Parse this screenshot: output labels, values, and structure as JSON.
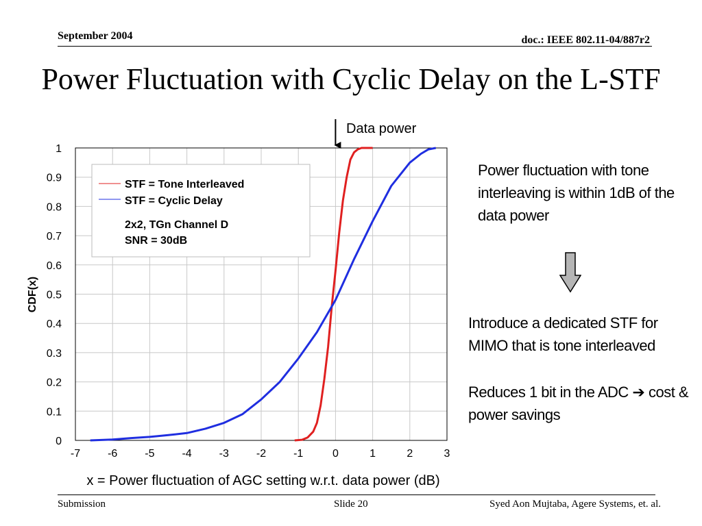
{
  "header": {
    "date": "September 2004",
    "doc_id": "doc.: IEEE 802.11-04/887r2"
  },
  "title": "Power Fluctuation with Cyclic Delay on the L-STF",
  "side_text": {
    "note": "Power fluctuation with tone interleaving is within 1dB of the data power",
    "intro": "Introduce a dedicated STF for MIMO that is tone interleaved",
    "reduce_prefix": "Reduces 1 bit in the ADC ",
    "reduce_arrow": "➔",
    "reduce_suffix": " cost & power savings"
  },
  "footer": {
    "left": "Submission",
    "center": "Slide 20",
    "right": "Syed Aon Mujtaba, Agere Systems, et. al."
  },
  "chart_data": {
    "type": "line",
    "xlabel": "x = Power fluctuation of AGC setting w.r.t. data power (dB)",
    "ylabel": "CDF(x)",
    "xlim": [
      -7,
      3
    ],
    "ylim": [
      0,
      1
    ],
    "xticks": [
      "-7",
      "-6",
      "-5",
      "-4",
      "-3",
      "-2",
      "-1",
      "0",
      "1",
      "2",
      "3"
    ],
    "yticks": [
      "0",
      "0.1",
      "0.2",
      "0.3",
      "0.4",
      "0.5",
      "0.6",
      "0.7",
      "0.8",
      "0.9",
      "1"
    ],
    "grid": true,
    "annotation": "Data power",
    "annotation_x": 0,
    "legend_position": "top-left",
    "legend_note": [
      "2x2, TGn Channel D",
      "SNR = 30dB"
    ],
    "series": [
      {
        "name": "STF = Tone Interleaved",
        "color": "#e02020",
        "x": [
          -1.1,
          -0.9,
          -0.75,
          -0.6,
          -0.5,
          -0.4,
          -0.3,
          -0.2,
          -0.1,
          0,
          0.1,
          0.2,
          0.3,
          0.4,
          0.5,
          0.6,
          0.7,
          0.8,
          1.0
        ],
        "y": [
          0,
          0.002,
          0.01,
          0.03,
          0.06,
          0.12,
          0.21,
          0.32,
          0.46,
          0.58,
          0.71,
          0.82,
          0.9,
          0.96,
          0.985,
          0.995,
          1.0,
          1.0,
          1.0
        ]
      },
      {
        "name": "STF = Cyclic Delay",
        "color": "#1f2ee0",
        "x": [
          -6.6,
          -6.0,
          -5.5,
          -5.0,
          -4.5,
          -4.0,
          -3.5,
          -3.0,
          -2.5,
          -2.0,
          -1.5,
          -1.0,
          -0.5,
          0,
          0.5,
          1.0,
          1.5,
          2.0,
          2.3,
          2.5,
          2.7
        ],
        "y": [
          0,
          0.003,
          0.008,
          0.012,
          0.018,
          0.025,
          0.04,
          0.06,
          0.09,
          0.14,
          0.2,
          0.28,
          0.37,
          0.48,
          0.62,
          0.75,
          0.87,
          0.95,
          0.98,
          0.995,
          1.0
        ]
      }
    ]
  }
}
